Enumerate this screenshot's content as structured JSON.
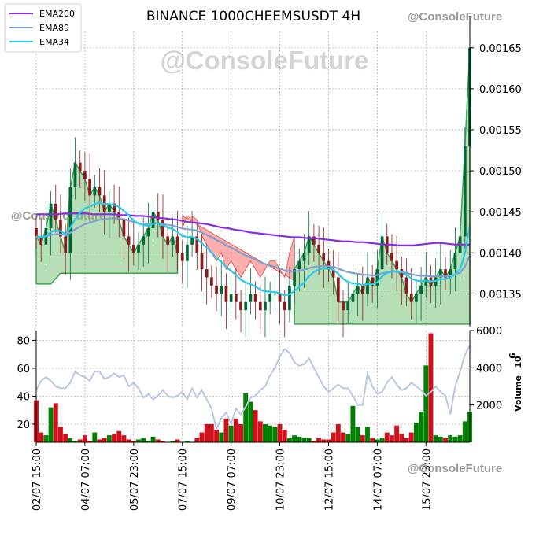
{
  "chart_data": {
    "type": "candlestick",
    "title": "BINANCE 1000CHEEMSUSDT 4H",
    "watermarks": {
      "top_right": "@ConsoleFuture",
      "center": "@ConsoleFuture",
      "left": "@ConsoleFuture",
      "bottom_right": "@ConsoleFuture"
    },
    "legend": {
      "placement": "top-left",
      "entries": [
        {
          "name": "EMA200",
          "color": "#8a2be2"
        },
        {
          "name": "EMA89",
          "color": "#7f9fcf"
        },
        {
          "name": "EMA34",
          "color": "#27c9e8"
        }
      ]
    },
    "price_axis": {
      "side": "right",
      "ylim": [
        0.00131,
        0.00167
      ],
      "ticks": [
        0.00135,
        0.0014,
        0.00145,
        0.0015,
        0.00155,
        0.0016,
        0.00165
      ],
      "tick_labels": [
        "0.00135",
        "0.00140",
        "0.00145",
        "0.00150",
        "0.00155",
        "0.00160",
        "0.00165"
      ]
    },
    "volume_axis_right": {
      "label": "Volume",
      "exponent": "10",
      "exponent_power": "6",
      "ylim": [
        0,
        6000
      ],
      "ticks": [
        2000,
        4000,
        6000
      ],
      "tick_labels": [
        "2000",
        "4000",
        "6000"
      ]
    },
    "volume_axis_left": {
      "ylim": [
        7,
        87
      ],
      "ticks": [
        20,
        40,
        60,
        80
      ],
      "tick_labels": [
        "20",
        "40",
        "60",
        "80"
      ]
    },
    "x_axis": {
      "count": 90,
      "ticks": [
        0,
        10,
        20,
        30,
        40,
        50,
        60,
        70,
        80
      ],
      "tick_labels": [
        "02/07 15:00",
        "04/07 07:00",
        "05/07 23:00",
        "07/07 15:00",
        "09/07 07:00",
        "10/07 23:00",
        "12/07 15:00",
        "14/07 07:00",
        "15/07 23:00"
      ]
    },
    "grid": true,
    "colors": {
      "up_candle": "#006837",
      "down_candle": "#8b1a1a",
      "up_volume": "#008000",
      "down_volume": "#d0101a",
      "ema200": "#8a2be2",
      "ema89": "#7f9fcf",
      "ema34": "#27c9e8",
      "green_zone": "#7cc47c",
      "red_zone": "#ff6b6b",
      "indicator_line": "#b9c8e0"
    },
    "candles_close": [
      0.00142,
      0.00141,
      0.00143,
      0.00146,
      0.00144,
      0.00142,
      0.0014,
      0.00148,
      0.00151,
      0.0015,
      0.00149,
      0.00147,
      0.00148,
      0.00147,
      0.00145,
      0.00146,
      0.00145,
      0.00144,
      0.00142,
      0.00141,
      0.0014,
      0.00141,
      0.00142,
      0.00143,
      0.00145,
      0.00144,
      0.00142,
      0.00141,
      0.00142,
      0.0014,
      0.00139,
      0.00141,
      0.00142,
      0.0014,
      0.00138,
      0.00137,
      0.00136,
      0.00135,
      0.00136,
      0.00134,
      0.00135,
      0.00134,
      0.00133,
      0.00134,
      0.00135,
      0.00134,
      0.00133,
      0.00134,
      0.00135,
      0.00135,
      0.00134,
      0.00133,
      0.00136,
      0.00138,
      0.00139,
      0.0014,
      0.00142,
      0.00141,
      0.0014,
      0.00139,
      0.00138,
      0.00137,
      0.00134,
      0.00133,
      0.00134,
      0.00135,
      0.00136,
      0.00135,
      0.00137,
      0.00136,
      0.00138,
      0.00142,
      0.0014,
      0.00139,
      0.00138,
      0.00137,
      0.00135,
      0.00134,
      0.00135,
      0.00136,
      0.00137,
      0.00136,
      0.00137,
      0.00138,
      0.00137,
      0.00138,
      0.0014,
      0.00142,
      0.00153,
      0.00165
    ],
    "volume": [
      37,
      14,
      12,
      32,
      35,
      18,
      13,
      10,
      8,
      9,
      12,
      8,
      14,
      9,
      10,
      12,
      13,
      15,
      12,
      9,
      8,
      9,
      10,
      8,
      11,
      9,
      8,
      7,
      8,
      9,
      7,
      8,
      7,
      10,
      14,
      20,
      20,
      16,
      14,
      24,
      19,
      24,
      20,
      42,
      36,
      30,
      22,
      20,
      19,
      18,
      20,
      16,
      10,
      12,
      11,
      10,
      10,
      8,
      10,
      9,
      9,
      14,
      20,
      14,
      13,
      33,
      18,
      12,
      18,
      10,
      9,
      10,
      14,
      12,
      19,
      13,
      10,
      14,
      21,
      29,
      62,
      85,
      12,
      11,
      10,
      12,
      11,
      12,
      22,
      29
    ],
    "ema200": [
      0.001447,
      0.001447,
      0.001447,
      0.001447,
      0.001448,
      0.001448,
      0.001448,
      0.001448,
      0.001447,
      0.001447,
      0.001447,
      0.001447,
      0.001446,
      0.001446,
      0.001445,
      0.001445,
      0.001444,
      0.001443,
      0.001442,
      0.001441,
      0.00144,
      0.001438,
      0.001437,
      0.001436,
      0.001435,
      0.001433,
      0.001431,
      0.00143,
      0.001428,
      0.001427,
      0.001425,
      0.001424,
      0.001423,
      0.001422,
      0.001421,
      0.00142,
      0.001419,
      0.001419,
      0.001418,
      0.001418,
      0.001417,
      0.001416,
      0.001415,
      0.001414,
      0.001414,
      0.001413,
      0.001413,
      0.001412,
      0.001411,
      0.00141,
      0.00141,
      0.001409,
      0.001409,
      0.001409,
      0.00141,
      0.001411,
      0.001412,
      0.001412,
      0.001411,
      0.00141,
      0.00141,
      0.00141
    ],
    "indicator": [
      2800,
      3300,
      3500,
      3300,
      3000,
      2900,
      2900,
      3200,
      3800,
      3600,
      3500,
      3300,
      3800,
      3800,
      3400,
      3500,
      3700,
      3500,
      3600,
      3000,
      3200,
      2900,
      2400,
      2600,
      2300,
      2500,
      2800,
      2500,
      2400,
      2500,
      2700,
      2300,
      2900,
      2400,
      2800,
      2300,
      1800,
      700,
      1300,
      1600,
      1000,
      1800,
      1500,
      1900,
      2400,
      2500,
      2800,
      3000,
      3600,
      4000,
      4600,
      5000,
      4800,
      4300,
      4100,
      4200,
      4500,
      4000,
      3500,
      3000,
      2700,
      2900,
      3100,
      2900,
      2900,
      2500,
      2000,
      2000,
      3700,
      3000,
      2600,
      2700,
      3200,
      3500,
      3100,
      2800,
      2900,
      3200,
      3000,
      2800,
      2500,
      2700,
      3000,
      2700,
      2500,
      1500,
      3000,
      3800,
      4700,
      5200
    ]
  }
}
